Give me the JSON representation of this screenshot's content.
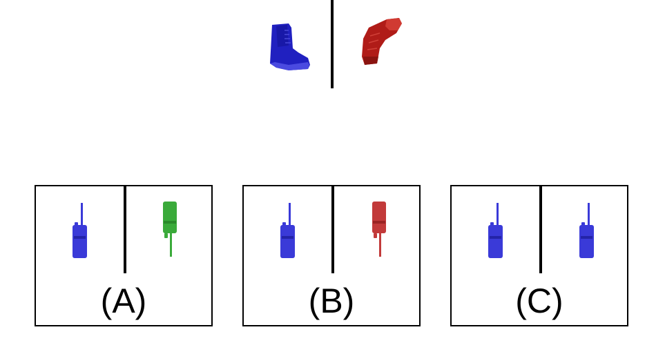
{
  "prompt": {
    "left_icon": "boot-icon",
    "left_color": "#2b2bd0",
    "right_icon": "boot-sole-icon",
    "right_color": "#b8231f"
  },
  "options": [
    {
      "label": "(A)",
      "left_icon": "walkie-talkie-icon",
      "left_color": "#3a3ad8",
      "right_icon": "walkie-talkie-rotated-icon",
      "right_color": "#3aaa3a"
    },
    {
      "label": "(B)",
      "left_icon": "walkie-talkie-icon",
      "left_color": "#3a3ad8",
      "right_icon": "walkie-talkie-rotated-icon",
      "right_color": "#c23a3a"
    },
    {
      "label": "(C)",
      "left_icon": "walkie-talkie-icon",
      "left_color": "#3a3ad8",
      "right_icon": "walkie-talkie-icon",
      "right_color": "#3a3ad8"
    }
  ]
}
